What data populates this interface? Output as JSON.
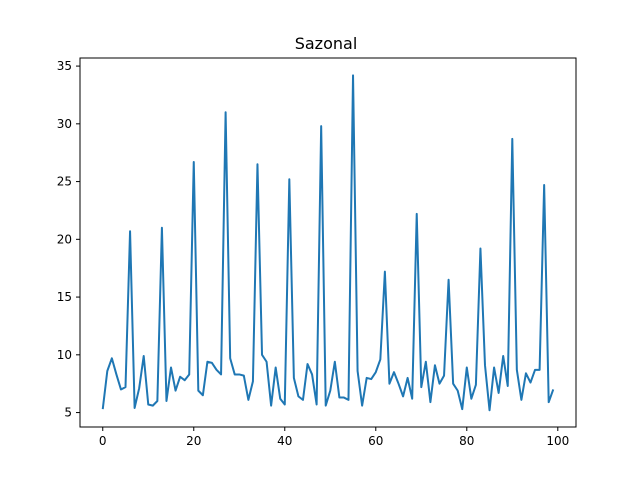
{
  "chart_data": {
    "type": "line",
    "title": "Sazonal",
    "xlabel": "",
    "ylabel": "",
    "xlim": [
      -5,
      104
    ],
    "ylim": [
      3.75,
      35.7
    ],
    "xticks": [
      0,
      20,
      40,
      60,
      80,
      100
    ],
    "yticks": [
      5,
      10,
      15,
      20,
      25,
      30,
      35
    ],
    "grid": false,
    "legend": "none",
    "color": "#1f77b4",
    "series": [
      {
        "x": [
          0,
          1,
          2,
          3,
          4,
          5,
          6,
          7,
          8,
          9,
          10,
          11,
          12,
          13,
          14,
          15,
          16,
          17,
          18,
          19,
          20,
          21,
          22,
          23,
          24,
          25,
          26,
          27,
          28,
          29,
          30,
          31,
          32,
          33,
          34,
          35,
          36,
          37,
          38,
          39,
          40,
          41,
          42,
          43,
          44,
          45,
          46,
          47,
          48,
          49,
          50,
          51,
          52,
          53,
          54,
          55,
          56,
          57,
          58,
          59,
          60,
          61,
          62,
          63,
          64,
          65,
          66,
          67,
          68,
          69,
          70,
          71,
          72,
          73,
          74,
          75,
          76,
          77,
          78,
          79,
          80,
          81,
          82,
          83,
          84,
          85,
          86,
          87,
          88,
          89,
          90,
          91,
          92,
          93,
          94,
          95,
          96,
          97,
          98,
          99
        ],
        "values": [
          5.3,
          8.6,
          9.7,
          8.3,
          7.0,
          7.2,
          20.7,
          5.4,
          7.1,
          9.9,
          5.7,
          5.6,
          6.0,
          21.0,
          6.0,
          8.9,
          6.9,
          8.1,
          7.8,
          8.3,
          26.7,
          6.9,
          6.5,
          9.4,
          9.3,
          8.7,
          8.3,
          31.0,
          9.7,
          8.3,
          8.3,
          8.2,
          6.1,
          7.7,
          26.5,
          10.0,
          9.4,
          5.6,
          8.9,
          6.2,
          5.7,
          25.2,
          8.0,
          6.4,
          6.1,
          9.2,
          8.3,
          5.7,
          29.8,
          5.6,
          6.9,
          9.4,
          6.3,
          6.3,
          6.1,
          34.2,
          8.6,
          5.6,
          8.0,
          7.9,
          8.5,
          9.6,
          17.2,
          7.5,
          8.5,
          7.5,
          6.4,
          8.0,
          6.2,
          22.2,
          7.2,
          9.4,
          5.9,
          9.1,
          7.5,
          8.2,
          16.5,
          7.5,
          6.9,
          5.3,
          8.9,
          6.2,
          7.4,
          19.2,
          9.1,
          5.2,
          8.9,
          6.7,
          9.9,
          7.3,
          28.7,
          8.7,
          6.1,
          8.4,
          7.6,
          8.7,
          8.7,
          24.7,
          5.9,
          7.0
        ]
      }
    ]
  }
}
